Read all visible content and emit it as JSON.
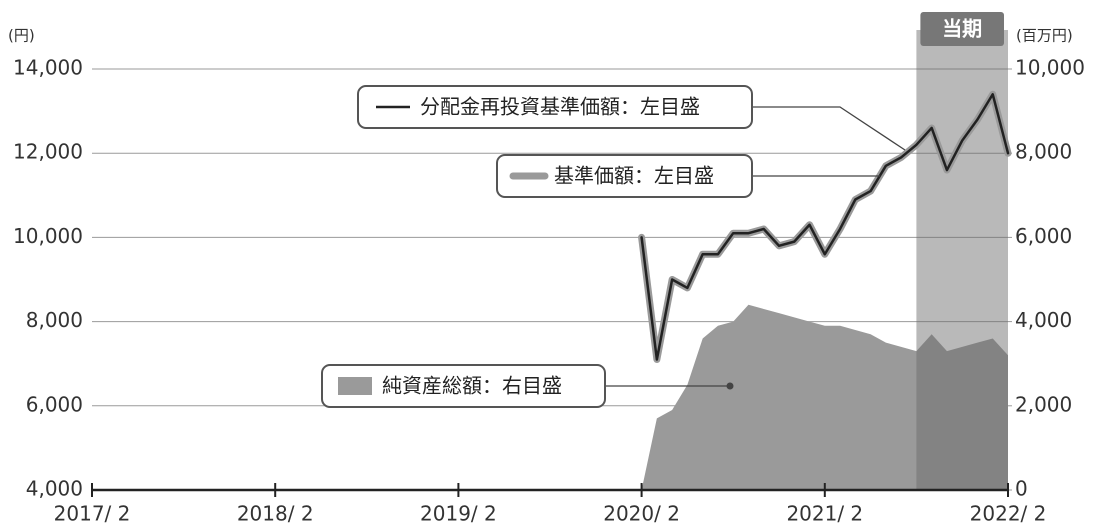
{
  "chart_data": {
    "type": "line",
    "y_label": "(円)",
    "y2_label": "(百万円)",
    "x": [
      "2020-02",
      "2020-03",
      "2020-04",
      "2020-05",
      "2020-06",
      "2020-07",
      "2020-08",
      "2020-09",
      "2020-10",
      "2020-11",
      "2020-12",
      "2021-01",
      "2021-02",
      "2021-03",
      "2021-04",
      "2021-05",
      "2021-06",
      "2021-07",
      "2021-08",
      "2021-09",
      "2021-10",
      "2021-11",
      "2021-12",
      "2022-01",
      "2022-02"
    ],
    "series": [
      {
        "name": "分配金再投資基準価額：左目盛",
        "color": "#222222",
        "values": [
          10000,
          7100,
          9000,
          8800,
          9600,
          9600,
          10100,
          10100,
          10200,
          9800,
          9900,
          10300,
          9600,
          10200,
          10900,
          11100,
          11700,
          11900,
          12200,
          12600,
          11600,
          12300,
          12800,
          13400,
          12000
        ]
      },
      {
        "name": "基準価額：左目盛",
        "color": "#9a9a9a",
        "values": [
          10000,
          7100,
          9000,
          8800,
          9600,
          9600,
          10100,
          10100,
          10200,
          9800,
          9900,
          10300,
          9600,
          10200,
          10900,
          11100,
          11700,
          11900,
          12200,
          12600,
          11600,
          12300,
          12800,
          13400,
          12000
        ]
      },
      {
        "name": "純資産総額：右目盛",
        "color": "#9a9a9a",
        "axis": "y2",
        "kind": "area",
        "values": [
          0,
          1700,
          1900,
          2500,
          3600,
          3900,
          4000,
          4400,
          4300,
          4200,
          4100,
          4000,
          3900,
          3900,
          3800,
          3700,
          3500,
          3400,
          3300,
          3700,
          3300,
          3400,
          3500,
          3600,
          3200
        ]
      }
    ],
    "xlim": [
      "2017-02",
      "2022-02"
    ],
    "xticks": [
      {
        "value": "2017-02",
        "label": "2017/ 2"
      },
      {
        "value": "2018-02",
        "label": "2018/ 2"
      },
      {
        "value": "2019-02",
        "label": "2019/ 2"
      },
      {
        "value": "2020-02",
        "label": "2020/ 2"
      },
      {
        "value": "2021-02",
        "label": "2021/ 2"
      },
      {
        "value": "2022-02",
        "label": "2022/ 2"
      }
    ],
    "ylim": [
      4000,
      14000
    ],
    "yticks": [
      {
        "value": 4000,
        "label": "4,000"
      },
      {
        "value": 6000,
        "label": "6,000"
      },
      {
        "value": 8000,
        "label": "8,000"
      },
      {
        "value": 10000,
        "label": "10,000"
      },
      {
        "value": 12000,
        "label": "12,000"
      },
      {
        "value": 14000,
        "label": "14,000"
      }
    ],
    "y2lim": [
      0,
      10000
    ],
    "y2ticks": [
      0,
      {
        "value": 2000,
        "label": "2,000"
      },
      {
        "value": 4000,
        "label": "4,000"
      },
      {
        "value": 6000,
        "label": "6,000"
      },
      {
        "value": 8000,
        "label": "8,000"
      },
      {
        "value": 10000,
        "label": "10,000"
      }
    ],
    "grid": true,
    "period": {
      "start": "2021-08",
      "end": "2022-02",
      "label": "当期"
    }
  }
}
